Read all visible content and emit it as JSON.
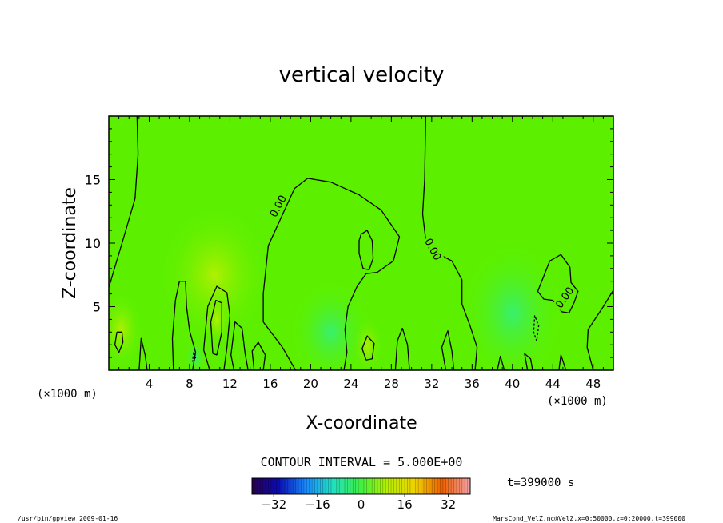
{
  "chart_data": {
    "type": "heatmap",
    "title": "vertical velocity",
    "xlabel": "X-coordinate",
    "ylabel": "Z-coordinate",
    "x_unit": "(×1000 m)",
    "y_unit": "(×1000 m)",
    "xlim": [
      0,
      50
    ],
    "ylim": [
      0,
      20
    ],
    "x_ticks": [
      4,
      8,
      12,
      16,
      20,
      24,
      28,
      32,
      36,
      40,
      44,
      48
    ],
    "y_ticks": [
      5,
      10,
      15
    ],
    "contour_interval": "CONTOUR INTERVAL = 5.000E+00",
    "contour_labels": [
      {
        "text": "0.00",
        "x": 16.8,
        "y": 12.9,
        "angle": -62
      },
      {
        "text": "0.00",
        "x": 32.1,
        "y": 9.5,
        "angle": 62
      },
      {
        "text": "0.00",
        "x": 45.2,
        "y": 5.7,
        "angle": -55
      }
    ],
    "contours": [
      {
        "level": 0,
        "points": [
          [
            2.8,
            20
          ],
          [
            2.9,
            17
          ],
          [
            2.6,
            13.5
          ],
          [
            1.5,
            10.5
          ],
          [
            0,
            6.5
          ]
        ]
      },
      {
        "level": 0,
        "points": [
          [
            18.5,
            0
          ],
          [
            17.2,
            1.8
          ],
          [
            15.3,
            3.8
          ],
          [
            15.3,
            6
          ],
          [
            15.8,
            9.8
          ],
          [
            17.3,
            12.4
          ],
          [
            18.4,
            14.3
          ],
          [
            19.7,
            15.1
          ],
          [
            22,
            14.8
          ],
          [
            24.8,
            13.8
          ],
          [
            27,
            12.6
          ],
          [
            28.8,
            10.5
          ],
          [
            28.2,
            8.6
          ],
          [
            26.6,
            7.7
          ],
          [
            25.5,
            7.6
          ],
          [
            24.6,
            6.6
          ],
          [
            23.7,
            5
          ],
          [
            23.4,
            3.2
          ],
          [
            23.6,
            1.4
          ],
          [
            23.3,
            0
          ]
        ]
      },
      {
        "level": 0,
        "points": [
          [
            25,
            10.7
          ],
          [
            25.6,
            11
          ],
          [
            26.1,
            10.2
          ],
          [
            26.2,
            8.8
          ],
          [
            25.8,
            7.9
          ],
          [
            25.2,
            8
          ],
          [
            24.8,
            9.2
          ],
          [
            24.8,
            10.2
          ],
          [
            25,
            10.7
          ]
        ]
      },
      {
        "level": 0,
        "points": [
          [
            31.4,
            20
          ],
          [
            31.3,
            15
          ],
          [
            31.1,
            12.3
          ],
          [
            31.4,
            10.3
          ],
          [
            32.3,
            9.3
          ],
          [
            34,
            8.6
          ],
          [
            35,
            7.1
          ],
          [
            35,
            5.2
          ],
          [
            35.8,
            3.5
          ],
          [
            36.5,
            1.8
          ],
          [
            36.3,
            0
          ]
        ]
      },
      {
        "level": 0,
        "points": [
          [
            48,
            0
          ],
          [
            47.4,
            1.8
          ],
          [
            47.5,
            3.2
          ],
          [
            49,
            5
          ],
          [
            50,
            6.3
          ]
        ]
      },
      {
        "level": 0,
        "points": [
          [
            42.9,
            7
          ],
          [
            43.7,
            8.6
          ],
          [
            44.8,
            9.1
          ],
          [
            45.7,
            8.1
          ],
          [
            45.8,
            6.9
          ],
          [
            46.5,
            6.2
          ],
          [
            46.1,
            5.3
          ],
          [
            45.6,
            4.5
          ],
          [
            44.9,
            4.6
          ],
          [
            44,
            5.5
          ],
          [
            43.1,
            5.6
          ],
          [
            42.5,
            6.2
          ],
          [
            42.9,
            7
          ]
        ]
      },
      {
        "level": 0,
        "points": [
          [
            6.4,
            0
          ],
          [
            6.3,
            2.5
          ],
          [
            6.6,
            5.5
          ],
          [
            7,
            7
          ],
          [
            7.6,
            7
          ],
          [
            7.7,
            5
          ],
          [
            8,
            3.1
          ],
          [
            8.6,
            1.4
          ],
          [
            8.3,
            0
          ]
        ]
      },
      {
        "level": 0,
        "points": [
          [
            12.4,
            0
          ],
          [
            12.1,
            1.2
          ],
          [
            12.5,
            3.8
          ],
          [
            13.2,
            3.3
          ],
          [
            13.5,
            1.3
          ],
          [
            13.8,
            0
          ]
        ]
      },
      {
        "level": 0,
        "points": [
          [
            14.4,
            0
          ],
          [
            14.2,
            1.5
          ],
          [
            14.8,
            2.2
          ],
          [
            15.5,
            1.2
          ],
          [
            15.3,
            0
          ]
        ]
      },
      {
        "level": 0,
        "points": [
          [
            3,
            0
          ],
          [
            3.2,
            2.5
          ],
          [
            3.6,
            1.2
          ],
          [
            3.8,
            0
          ]
        ]
      },
      {
        "level": 0,
        "points": [
          [
            28.4,
            0
          ],
          [
            28.6,
            2.3
          ],
          [
            29.1,
            3.3
          ],
          [
            29.6,
            2
          ],
          [
            29.8,
            0
          ]
        ]
      },
      {
        "level": 0,
        "points": [
          [
            33.4,
            0
          ],
          [
            33,
            1.8
          ],
          [
            33.6,
            3.1
          ],
          [
            34,
            1.5
          ],
          [
            34.2,
            0
          ]
        ]
      },
      {
        "level": 0,
        "points": [
          [
            38.5,
            0
          ],
          [
            38.8,
            1.1
          ],
          [
            39.2,
            0
          ]
        ]
      },
      {
        "level": 0,
        "points": [
          [
            41.5,
            0
          ],
          [
            41.2,
            1.3
          ],
          [
            41.8,
            0.9
          ],
          [
            42,
            0
          ]
        ]
      },
      {
        "level": 0,
        "points": [
          [
            44.6,
            0
          ],
          [
            44.8,
            1.2
          ],
          [
            45.3,
            0
          ]
        ]
      },
      {
        "level": 0,
        "points": [
          [
            10,
            0
          ],
          [
            9.4,
            1.6
          ],
          [
            9.8,
            5
          ],
          [
            10.7,
            6.6
          ],
          [
            11.7,
            6.1
          ],
          [
            12,
            4.3
          ],
          [
            11.7,
            1.8
          ],
          [
            11.4,
            0
          ]
        ]
      },
      {
        "level": 5,
        "points": [
          [
            0.8,
            3
          ],
          [
            0.6,
            2
          ],
          [
            1,
            1.4
          ],
          [
            1.4,
            2.2
          ],
          [
            1.3,
            3
          ],
          [
            0.8,
            3
          ]
        ]
      },
      {
        "level": 5,
        "points": [
          [
            10.3,
            1.3
          ],
          [
            10.1,
            3.8
          ],
          [
            10.6,
            5.5
          ],
          [
            11.2,
            5.3
          ],
          [
            11.2,
            3
          ],
          [
            10.7,
            1.2
          ],
          [
            10.3,
            1.3
          ]
        ]
      },
      {
        "level": 5,
        "points": [
          [
            25.5,
            0.8
          ],
          [
            25.1,
            1.7
          ],
          [
            25.6,
            2.7
          ],
          [
            26.3,
            2.1
          ],
          [
            26.1,
            0.9
          ],
          [
            25.5,
            0.8
          ]
        ]
      },
      {
        "level": -5,
        "points": [
          [
            42.2,
            4.3
          ],
          [
            42.1,
            3
          ],
          [
            42.4,
            2.3
          ],
          [
            42.6,
            3.5
          ],
          [
            42.2,
            4.3
          ]
        ]
      },
      {
        "level": -5,
        "points": [
          [
            8.4,
            1.4
          ],
          [
            8.3,
            0.7
          ],
          [
            8.6,
            1
          ],
          [
            8.4,
            1.4
          ]
        ]
      }
    ],
    "colorbar": {
      "range": [
        -40,
        40
      ],
      "ticks": [
        -32,
        -16,
        0,
        16,
        32
      ],
      "tick_labels": [
        "−32",
        "−16",
        "0",
        "16",
        "32"
      ]
    },
    "time_label": "t=399000 s"
  },
  "footer": {
    "left": "/usr/bin/gpview   2009-01-16",
    "right": "MarsCond_VelZ.nc@VelZ,x=0:50000,z=0:20000,t=399000"
  }
}
